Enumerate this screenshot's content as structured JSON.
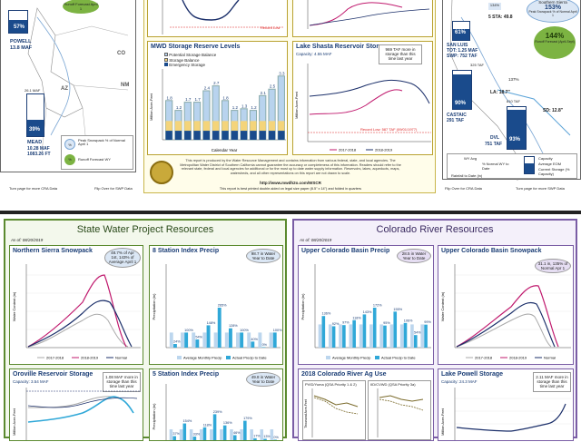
{
  "top": {
    "left_map": {
      "powell_pct": "57%",
      "powell_name": "POWELL",
      "powell_amount": "13.8 MAF",
      "lake_mead_volume": "26.1 MAF",
      "mead_pct": "39%",
      "mead_name": "MEAD",
      "mead_amount": "10.28 MAF",
      "mead_elev": "1083.26 FT",
      "state_co": "CO",
      "state_nm": "NM",
      "state_az": "AZ",
      "runoff_tag": "Runoff Forecast April 1",
      "legend_peak": "Peak Snowpack % of Normal April 1",
      "legend_runoff": "Runoff Forecast WY",
      "legend_pct": "%",
      "footer_left": "Turn page for more CRA Data",
      "footer_right": "Flip Over for SWP Data"
    },
    "center": {
      "below_text": "Record Low",
      "mwd_title": "MWD Storage Reserve Levels",
      "mwd_legend": [
        "Potential Storage Balance",
        "Storage Balance",
        "Emergency Storage"
      ],
      "mwd_ylabel": "Million Acre-Feet",
      "mwd_xlabel": "Calendar Year",
      "shasta_title": "Lake Shasta Reservoir Storage",
      "shasta_capacity": "Capacity: 4.55 MAF",
      "shasta_note": "969 TAF more in storage than this time last year",
      "shasta_record": "Record Low: 587 TAF (09/01/1977)",
      "shasta_ylabel": "Million Acre-Feet",
      "shasta_legend": [
        "2017-2018",
        "2018-2019"
      ],
      "disclaimer": "This report is produced by the Water Resource Management and contains information from various federal, state, and local agencies. The Metropolitan Water District of Southern California cannot guarantee the accuracy or completeness of this information. Readers should refer to the relevant state, federal and local agencies for additional or for the most up to date water supply information. Reservoirs, lakes, aqueducts, maps, watersheds, and all other representations on this report are not drawn to scale.",
      "url": "http://www.mwdh2o.com/WSCR",
      "footer_note": "This report is best printed double-sided on legal size paper (8.5\" x 14\") and folded in quarters"
    },
    "right_map": {
      "snow_label": "Southern Sierra",
      "snow_pct": "153%",
      "snow_sub": "Peak Snowpack % of Normal April 1",
      "sta_label": "5 STA: 49.8",
      "san_luis_pct": "61%",
      "san_luis_name": "SAN LUIS",
      "san_luis_tot": "TOT: 1.25 MAF",
      "san_luis_swp": "SWP: 752 TAF",
      "runoff_pct": "144%",
      "runoff_text": "Runoff Forecast (April-Sept)",
      "la_label": "LA: 18.7\"",
      "sd_label": "SD: 12.8\"",
      "castaic_cap": "325 TAF",
      "castaic_pct": "90%",
      "castaic_name": "CASTAIC",
      "castaic_amount": "291 TAF",
      "dvl_cap": "810 TAF",
      "dvl_pct": "93%",
      "dvl_name": "DVL",
      "dvl_amount": "751 TAF",
      "pct_137": "137%",
      "pct_134": "134%",
      "legend_rain": "Rainfall to Date (in)",
      "legend_normal": "% Normal WY to Date",
      "legend_wy": "WY Avg",
      "legend_capacity": "Capacity",
      "legend_avg_eom": "Average EOM",
      "legend_current": "Current Storage (% Capacity)",
      "footer_left": "Flip Over for CRA Data",
      "footer_right": "Turn page for more SWP Data"
    }
  },
  "swp": {
    "header": "State Water Project Resources",
    "as_of": "As of: 08/20/2019",
    "snowpack": {
      "title": "Northern Sierra Snowpack",
      "note": "48.7% of Apr 1st, 143% of Average April 1",
      "ylabel": "Water Content (in)",
      "legend": [
        "2017-2018",
        "2018-2019",
        "Normal"
      ]
    },
    "index8": {
      "title": "8 Station Index Precip",
      "note": "98.7 in Water Year to Date",
      "ylabel": "Precipitation (in)",
      "legend": [
        "Average Monthly Precip",
        "Actual Precip to Date"
      ],
      "bars": [
        "24%",
        "100%",
        "54%",
        "148%",
        "265%",
        "128%",
        "100%",
        "40%",
        "0%",
        "100%"
      ]
    },
    "oroville": {
      "title": "Oroville Reservoir Storage",
      "capacity": "Capacity: 3.54 MAF",
      "note": "1.08 MAF more in storage than this time last year",
      "ylabel": "Million Acre-Feet"
    },
    "index5": {
      "title": "5 Station Index Precip",
      "note": "49.8 in Water Year to Date",
      "ylabel": "Precipitation (in)",
      "bars": [
        "37%",
        "154%",
        "33%",
        "118%",
        "239%",
        "136%",
        "46%",
        "179%",
        "17%",
        "13%",
        "0%"
      ]
    }
  },
  "cra": {
    "header": "Colorado River Resources",
    "as_of": "As of: 08/20/2019",
    "precip": {
      "title": "Upper Colorado Basin Precip",
      "note": "28.5 in Water Year to Date",
      "ylabel": "Precipitation (in)",
      "legend": [
        "Average Monthly Precip",
        "Actual Precip to Date"
      ],
      "bars": [
        "136%",
        "92%",
        "97%",
        "118%",
        "143%",
        "172%",
        "95%",
        "155%",
        "106%",
        "54%",
        "99%"
      ]
    },
    "snowpack": {
      "title": "Upper Colorado Basin Snowpack",
      "note": "31.1 in, 135% of Normal Apr 1",
      "ylabel": "Water Content (in)",
      "legend": [
        "2017-2018",
        "2018-2019",
        "Normal"
      ]
    },
    "ag_use": {
      "title": "2018 Colorado River Ag Use",
      "left_label": "PVID/Yuma (QSA Priority 1 & 2)",
      "right_label": "IID/CVWD (QSA Priority 3a)",
      "ylabel": "Thousand Acre-Feet"
    },
    "powell": {
      "title": "Lake Powell Storage",
      "capacity": "Capacity: 24.3 MAF",
      "note": "2.11 MAF more in storage than this time last year",
      "ylabel": "Million Acre-Feet"
    }
  },
  "colors": {
    "accent_blue": "#1a3d75",
    "swp_green": "#5b8a2f",
    "cra_purple": "#7a5da5",
    "bar_blue": "#30a8d8",
    "line_pink": "#c01a6e",
    "line_navy": "#1b2f6a"
  }
}
